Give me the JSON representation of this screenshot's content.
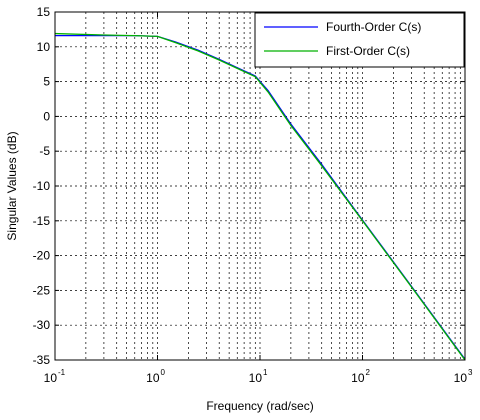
{
  "chart_data": {
    "type": "line",
    "title": "",
    "xlabel": "Frequency (rad/sec)",
    "ylabel": "Singular Values (dB)",
    "xscale": "log",
    "xlim": [
      0.1,
      1000
    ],
    "ylim": [
      -35,
      15
    ],
    "grid": true,
    "legend_position": "top-right",
    "x_ticks": [
      {
        "base": "10",
        "exp": "-1",
        "value": 0.1
      },
      {
        "base": "10",
        "exp": "0",
        "value": 1
      },
      {
        "base": "10",
        "exp": "1",
        "value": 10
      },
      {
        "base": "10",
        "exp": "2",
        "value": 100
      },
      {
        "base": "10",
        "exp": "3",
        "value": 1000
      }
    ],
    "y_ticks": [
      "15",
      "10",
      "5",
      "0",
      "-5",
      "-10",
      "-15",
      "-20",
      "-25",
      "-30",
      "-35"
    ],
    "series": [
      {
        "name": "Fourth-Order C(s)",
        "color": "#0000ff",
        "x": [
          0.1,
          0.3,
          0.6,
          1.0,
          1.5,
          2.5,
          4,
          6,
          9,
          12,
          20,
          40,
          100,
          300,
          1000
        ],
        "y": [
          11.6,
          11.6,
          11.6,
          11.5,
          10.7,
          9.5,
          8.2,
          7.0,
          5.8,
          3.7,
          -1.1,
          -6.9,
          -14.9,
          -24.4,
          -34.9
        ]
      },
      {
        "name": "First-Order C(s)",
        "color": "#00b000",
        "x": [
          0.1,
          0.3,
          0.6,
          1.0,
          1.5,
          2.5,
          4,
          6,
          9,
          12,
          20,
          40,
          100,
          300,
          1000
        ],
        "y": [
          11.9,
          11.7,
          11.6,
          11.5,
          10.6,
          9.4,
          8.1,
          6.9,
          5.7,
          3.5,
          -1.3,
          -7.1,
          -15.0,
          -24.5,
          -35.0
        ]
      }
    ]
  }
}
